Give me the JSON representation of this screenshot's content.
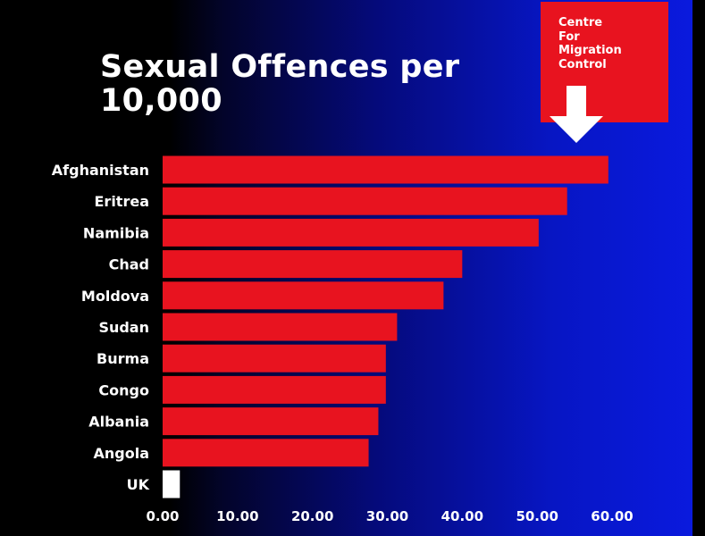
{
  "source": {
    "text": "Centre\nFor\nMigration\nControl"
  },
  "colors": {
    "bar": "#e8131f",
    "highlight_bar": "#ffffff",
    "label": "#ffffff"
  },
  "icons": [
    "down-arrow-icon"
  ],
  "chart_data": {
    "type": "bar",
    "orientation": "horizontal",
    "title": "Sexual Offences per 10,000",
    "categories": [
      "Afghanistan",
      "Eritrea",
      "Namibia",
      "Chad",
      "Moldova",
      "Sudan",
      "Burma",
      "Congo",
      "Albania",
      "Angola",
      "UK"
    ],
    "values": [
      59.5,
      54,
      50.2,
      40,
      37.5,
      31.3,
      29.8,
      29.8,
      28.8,
      27.5,
      2.3
    ],
    "bar_colors": [
      "#e8131f",
      "#e8131f",
      "#e8131f",
      "#e8131f",
      "#e8131f",
      "#e8131f",
      "#e8131f",
      "#e8131f",
      "#e8131f",
      "#e8131f",
      "#ffffff"
    ],
    "xlim": [
      0,
      60
    ],
    "xticks": [
      "0.00",
      "10.00",
      "20.00",
      "30.00",
      "40.00",
      "50.00",
      "60.00"
    ],
    "xlabel": "",
    "ylabel": "",
    "grid": false,
    "legend": "none"
  }
}
